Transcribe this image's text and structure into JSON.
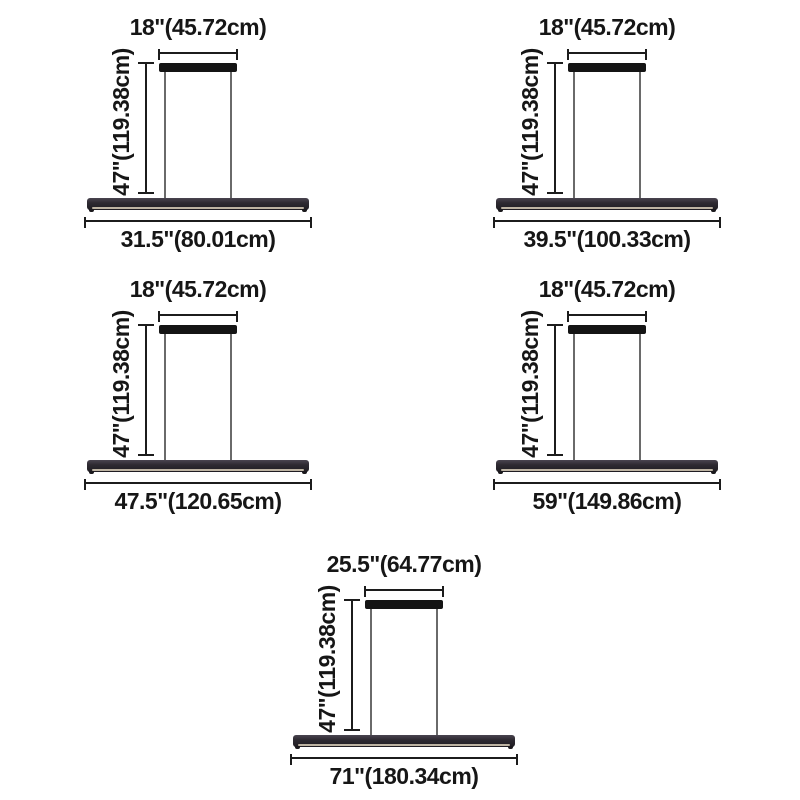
{
  "page": {
    "background": "#ffffff"
  },
  "colors": {
    "dimension_line": "#1c1c1c",
    "text": "#161616",
    "canopy": "#141414",
    "bar_body": "#2e2a31",
    "bar_led_edge": "#cec3b0",
    "wire": "#6a6a6a"
  },
  "fixtures": [
    {
      "canopy_width_label": "18\"(45.72cm)",
      "height_label": "47\"(119.38cm)",
      "overall_width_label": "31.5\"(80.01cm)"
    },
    {
      "canopy_width_label": "18\"(45.72cm)",
      "height_label": "47\"(119.38cm)",
      "overall_width_label": "39.5\"(100.33cm)"
    },
    {
      "canopy_width_label": "18\"(45.72cm)",
      "height_label": "47\"(119.38cm)",
      "overall_width_label": "47.5\"(120.65cm)"
    },
    {
      "canopy_width_label": "18\"(45.72cm)",
      "height_label": "47\"(119.38cm)",
      "overall_width_label": "59\"(149.86cm)"
    },
    {
      "canopy_width_label": "25.5\"(64.77cm)",
      "height_label": "47\"(119.38cm)",
      "overall_width_label": "71\"(180.34cm)"
    }
  ]
}
